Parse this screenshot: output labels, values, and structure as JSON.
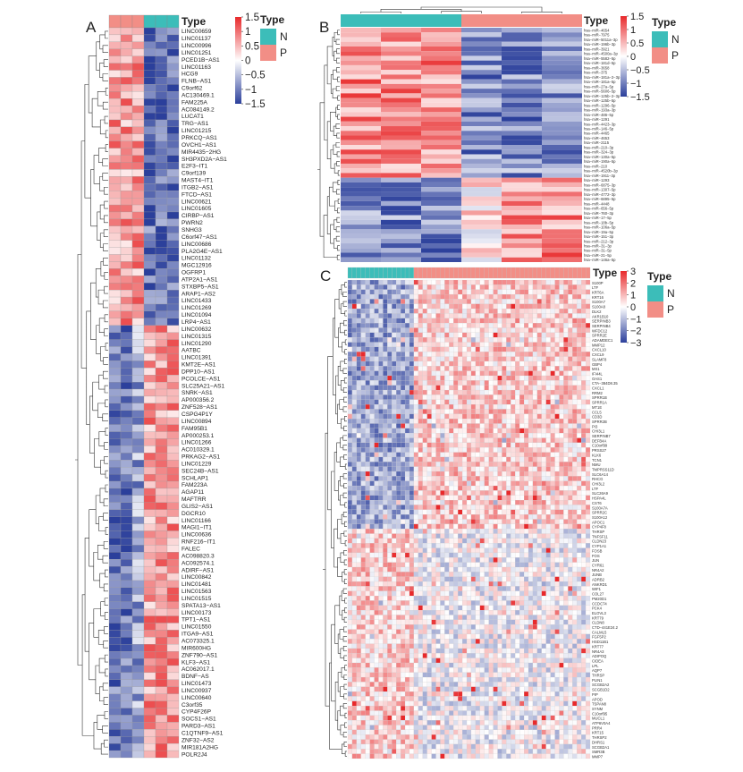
{
  "figure": {
    "colors": {
      "high": "#e8292b",
      "mid": "#ffffff",
      "low": "#2b3f9b",
      "N": "#3cbdb9",
      "P": "#f28e86"
    }
  },
  "chart_data": [
    {
      "type": "heatmap",
      "panel": "A",
      "annotation_title": "Type",
      "groups": {
        "N": 3,
        "P": 3
      },
      "legend": {
        "title": "Type",
        "items": [
          "N",
          "P"
        ]
      },
      "colorbar": {
        "ticks": [
          "1.5",
          "1",
          "0.5",
          "0",
          "−0.5",
          "−1",
          "−1.5"
        ],
        "values": [
          1.5,
          1,
          0.5,
          0,
          -0.5,
          -1,
          -1.5
        ]
      },
      "rows": [
        "LINC00659",
        "LINC01137",
        "LINC00996",
        "LINC01251",
        "PCED1B−AS1",
        "LINC01163",
        "HCG9",
        "FLNB−AS1",
        "C9orf62",
        "AC130469.1",
        "FAM225A",
        "AC084149.2",
        "LUCAT1",
        "TRG−AS1",
        "LINC01215",
        "PRKCQ−AS1",
        "OVCH1−AS1",
        "MIR4435−2HG",
        "SH3PXD2A−AS1",
        "E2F3−IT1",
        "C9orf139",
        "MAST4−IT1",
        "ITGB2−AS1",
        "FTCD−AS1",
        "LINC00621",
        "LINC01605",
        "CIRBP−AS1",
        "PWRN2",
        "SNHG3",
        "C6orf47−AS1",
        "LINC00686",
        "PLA2G4E−AS1",
        "LINC01132",
        "MGC12916",
        "OGFRP1",
        "ATP2A1−AS1",
        "STXBP5−AS1",
        "ARAP1−AS2",
        "LINC01433",
        "LINC01269",
        "LINC01094",
        "LRP4−AS1",
        "LINC00632",
        "LINC01315",
        "LINC01290",
        "AATBC",
        "LINC01391",
        "KMT2E−AS1",
        "DPP10−AS1",
        "PCOLCE−AS1",
        "SLC25A21−AS1",
        "SNRK−AS1",
        "AP000356.2",
        "ZNF528−AS1",
        "CSPG4P1Y",
        "LINC00894",
        "FAM95B1",
        "AP000253.1",
        "LINC01266",
        "AC010329.1",
        "PRKAG2−AS1",
        "LINC01229",
        "SEC24B−AS1",
        "SCHLAP1",
        "FAM223A",
        "AGAP11",
        "MAFTRR",
        "GLIS2−AS1",
        "DGCR10",
        "LINC01166",
        "MAGI1−IT1",
        "LINC00636",
        "RNF216−IT1",
        "FALEC",
        "AC098820.3",
        "AC092574.1",
        "ADIRF−AS1",
        "LINC00842",
        "LINC01481",
        "LINC01563",
        "LINC01515",
        "SPATA13−AS1",
        "LINC00173",
        "TPT1−AS1",
        "LINC01550",
        "ITGA9−AS1",
        "AC073325.1",
        "MIR600HG",
        "ZNF790−AS1",
        "KLF3−AS1",
        "AC062017.1",
        "BDNF−AS",
        "LINC01473",
        "LINC00937",
        "LINC00640",
        "C3orf35",
        "CYP4F26P",
        "SOCS1−AS1",
        "PARD3−AS1",
        "C1QTNF9−AS1",
        "ZNF32−AS2",
        "MIR181A2HG",
        "POLR2J4"
      ]
    },
    {
      "type": "heatmap",
      "panel": "B",
      "annotation_title": "Type",
      "groups": {
        "N": 3,
        "P": 3
      },
      "legend": {
        "title": "Type",
        "items": [
          "N",
          "P"
        ]
      },
      "colorbar": {
        "ticks": [
          "1.5",
          "1",
          "0.5",
          "0",
          "−0.5",
          "−1",
          "−1.5"
        ],
        "values": [
          1.5,
          1,
          0.5,
          0,
          -0.5,
          -1,
          -1.5
        ]
      },
      "rows": [
        "hsa−miR−4654",
        "hsa−miR−7975",
        "hsa−miR−5011a−3p",
        "hsa−miR−196b−3p",
        "hsa−miR−3921",
        "hsa−miR−4500a−3p",
        "hsa−miR−5582−5p",
        "hsa−miR−181d−5p",
        "hsa−miR−3658",
        "hsa−miR−375",
        "hsa−miR−181a−2−3p",
        "hsa−miR−181a−5p",
        "hsa−miR−27a−5p",
        "hsa−miR−5606−5p",
        "hsa−miR−125b−2−3p",
        "hsa−miR−125b−5p",
        "hsa−miR−1296−5p",
        "hsa−miR−193a−3p",
        "hsa−miR−486−5p",
        "hsa−miR−1291",
        "hsa−miR−4423−3p",
        "hsa−miR−146−5p",
        "hsa−miR−4465",
        "hsa−miR−4653",
        "hsa−miR−2115",
        "hsa−miR−210−3p",
        "hsa−miR−324−3p",
        "hsa−miR−130a−5p",
        "hsa−miR−190a−5p",
        "hsa−miR−210",
        "hsa−miR−4520b−3p",
        "hsa−miR−1911−3p",
        "hsa−miR−1293",
        "hsa−miR−6875−3p",
        "hsa−miR−1307−5p",
        "hsa−miR−4772−3p",
        "hsa−miR−6895−5p",
        "hsa−miR−4448",
        "hsa−miR−656−5p",
        "hsa−miR−760−3p",
        "hsa−miR−17−5p",
        "hsa−miR−18b−5p",
        "hsa−miR−106a−5p",
        "hsa−miR−19a−5p",
        "hsa−miR−151−3p",
        "hsa−miR−212−3p",
        "hsa−miR−31−3p",
        "hsa−miR−31−5p",
        "hsa−miR−21−5p",
        "hsa−miR−146a−5p"
      ]
    },
    {
      "type": "heatmap",
      "panel": "C",
      "annotation_title": "Type",
      "groups": {
        "N": 15,
        "P": 40
      },
      "legend": {
        "title": "Type",
        "items": [
          "N",
          "P"
        ]
      },
      "colorbar": {
        "ticks": [
          "3",
          "2",
          "1",
          "0",
          "−1",
          "−2",
          "−3"
        ],
        "values": [
          3,
          2,
          1,
          0,
          -1,
          -2,
          -3
        ]
      },
      "rows": [
        "S100P",
        "LTF",
        "KRT6A",
        "KRT16",
        "S100A7",
        "S100A8",
        "DLK2",
        "AKR1B10",
        "SERPINB3",
        "SERPINB4",
        "WFDC12",
        "SPRR2E",
        "ADAMDEC1",
        "MMP12",
        "CXCL10",
        "CXCL9",
        "SLAMF8",
        "GBP4",
        "MX1",
        "IFI44L",
        "OAS1",
        "CTA−384D8.35",
        "CXCL1",
        "RRM2",
        "SPRR1B",
        "SPRR1A",
        "MT1E",
        "CCL5",
        "CD3D",
        "SPRR2B",
        "PI3",
        "CHI3L1",
        "SERPINB7",
        "DEFB4A",
        "C10orf99",
        "PRSS27",
        "KLK6",
        "TCN1",
        "NMU",
        "TMPRSS11D",
        "SLC6A14",
        "RHCG",
        "CHI3L2",
        "LTF",
        "SLC26A9",
        "HSPA4L",
        "CST6",
        "S100A7A",
        "SPRR2C",
        "S100A12",
        "APOC1",
        "CYP4F8",
        "THRSP",
        "TNFSF11",
        "CLDN23",
        "CYP1A1",
        "FOSB",
        "FOS",
        "JUN",
        "CYR61",
        "NR4A2",
        "JUNB",
        "ADRB2",
        "ANKRD1",
        "WIF1",
        "COL27",
        "PM20D1",
        "CCDC74",
        "PCK4",
        "ELOVL3",
        "KRT79",
        "CLDN8",
        "CTD−441E24.2",
        "CALML5",
        "FGF5P2",
        "HSD11B1",
        "KRT77",
        "NR4A3",
        "ADIPOQ",
        "CIDEA",
        "LPL",
        "AQP7",
        "THRSP",
        "PLIN1",
        "SCGB2A2",
        "SCGB1D2",
        "PIP",
        "APOD",
        "TSPAN8",
        "SYNM",
        "C10orf95",
        "MUCL1",
        "ATP6V0A4",
        "PRR4",
        "KRT15",
        "THRSP2",
        "DHRS1",
        "SCGB2A1",
        "SMR3B",
        "MMP7"
      ]
    }
  ]
}
